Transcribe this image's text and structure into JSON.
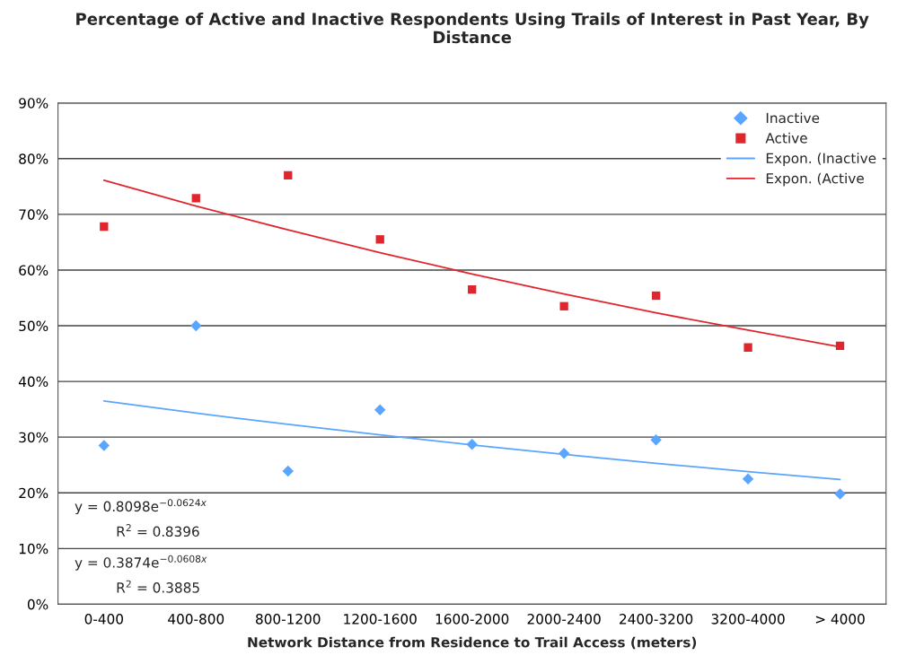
{
  "chart_data": {
    "type": "scatter",
    "title": "Percentage of Active and Inactive Respondents Using Trails of Interest in Past Year, By Distance",
    "xlabel": "Network Distance from Residence to Trail Access (meters)",
    "categories": [
      "0-400",
      "400-800",
      "800-1200",
      "1200-1600",
      "1600-2000",
      "2000-2400",
      "2400-3200",
      "3200-4000",
      "> 4000"
    ],
    "series": [
      {
        "name": "Inactive",
        "marker": "diamond",
        "color": "#5aa5ff",
        "values": [
          28.5,
          50,
          23.9,
          34.9,
          28.7,
          27.1,
          29.5,
          22.5,
          19.8
        ]
      },
      {
        "name": "Active",
        "marker": "square",
        "color": "#e0262c",
        "values": [
          67.8,
          72.9,
          77.0,
          65.5,
          56.5,
          53.5,
          55.4,
          46.1,
          46.4
        ]
      },
      {
        "name": "Expon. (Inactive",
        "type": "line",
        "marker": "none",
        "line_style": "solid",
        "color": "#5aa5ff",
        "values": [
          36.5,
          34.3,
          32.3,
          30.4,
          28.6,
          26.9,
          25.3,
          23.8,
          22.4
        ]
      },
      {
        "name": "Expon. (Active",
        "type": "line",
        "marker": "none",
        "line_style": "solid",
        "color": "#e0262c",
        "values": [
          76.1,
          71.5,
          67.2,
          63.1,
          59.3,
          55.7,
          52.3,
          49.2,
          46.2
        ]
      }
    ],
    "ylim": [
      0,
      90
    ],
    "yticks": [
      {
        "value": 0,
        "label": "0%"
      },
      {
        "value": 10,
        "label": "10%"
      },
      {
        "value": 20,
        "label": "20%"
      },
      {
        "value": 30,
        "label": "30%"
      },
      {
        "value": 40,
        "label": "40%"
      },
      {
        "value": 50,
        "label": "50%"
      },
      {
        "value": 60,
        "label": "60%"
      },
      {
        "value": 70,
        "label": "70%"
      },
      {
        "value": 80,
        "label": "80%"
      },
      {
        "value": 90,
        "label": "90%"
      }
    ],
    "grid": "y",
    "legend": "top right",
    "annotations": [
      "y = 0.8098e$^{−0.0624x}$",
      "R$^{2}$ = 0.8396",
      "y = 0.3874e$^{−0.0608x}$",
      "R$^{2}$ = 0.3885"
    ]
  }
}
